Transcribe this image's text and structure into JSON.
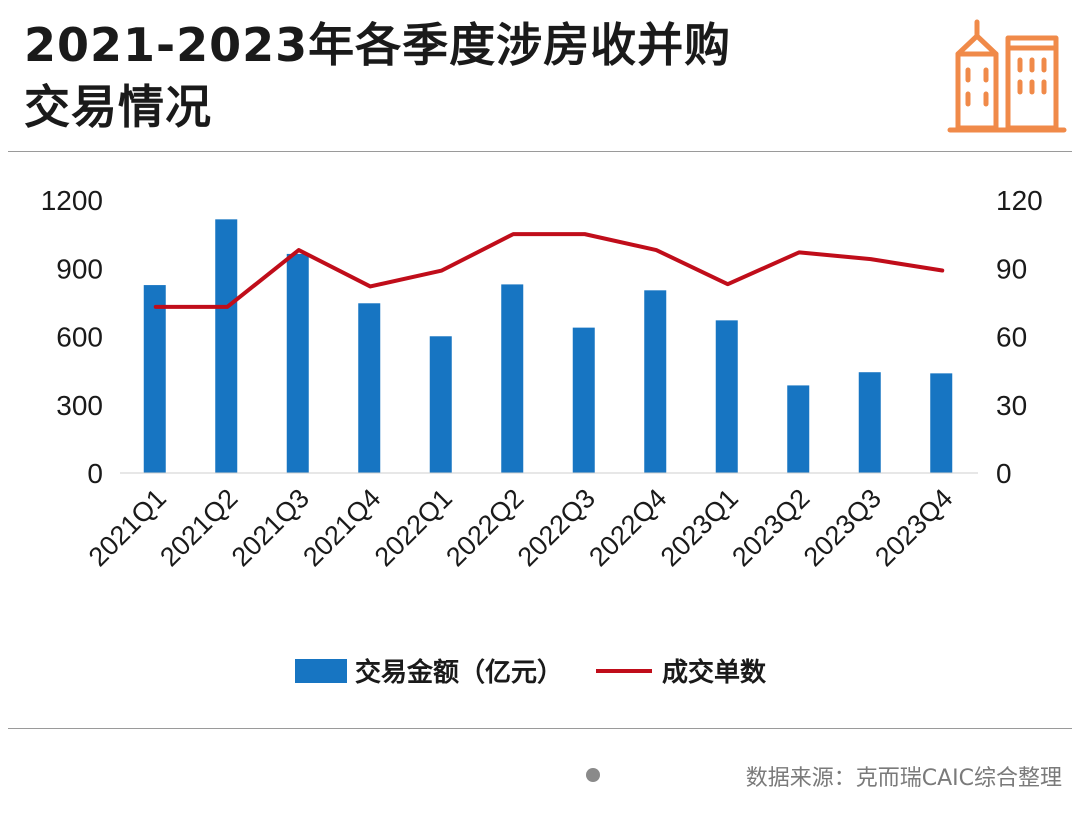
{
  "title": {
    "line1": "2021-2023年各季度涉房收并购",
    "line2": "交易情况"
  },
  "logo_icon": "building-icon",
  "source": "数据来源：克而瑞CAIC综合整理",
  "colors": {
    "bar": "#1775c2",
    "line": "#c00d1a",
    "accent": "#f08a49",
    "axis": "#1a1a1a",
    "rule": "#9a9a9a"
  },
  "chart_data": {
    "type": "bar",
    "title": "2021-2023年各季度涉房收并购交易情况",
    "categories": [
      "2021Q1",
      "2021Q2",
      "2021Q3",
      "2021Q4",
      "2022Q1",
      "2022Q2",
      "2022Q3",
      "2022Q4",
      "2023Q1",
      "2023Q2",
      "2023Q3",
      "2023Q4"
    ],
    "series": [
      {
        "name": "交易金额（亿元）",
        "type": "bar",
        "axis": "left",
        "values": [
          826,
          1115,
          963,
          746,
          601,
          829,
          639,
          803,
          671,
          385,
          443,
          438
        ]
      },
      {
        "name": "成交单数",
        "type": "line",
        "axis": "right",
        "values": [
          73,
          73,
          98,
          82,
          89,
          105,
          105,
          98,
          83,
          97,
          94,
          89
        ]
      }
    ],
    "y_left": {
      "min": 0,
      "max": 1200,
      "ticks": [
        0,
        300,
        600,
        900,
        1200
      ]
    },
    "y_right": {
      "min": 0,
      "max": 120,
      "ticks": [
        0,
        30,
        60,
        90,
        120
      ]
    },
    "legend": [
      "交易金额（亿元）",
      "成交单数"
    ],
    "legend_position": "bottom",
    "grid": false
  }
}
